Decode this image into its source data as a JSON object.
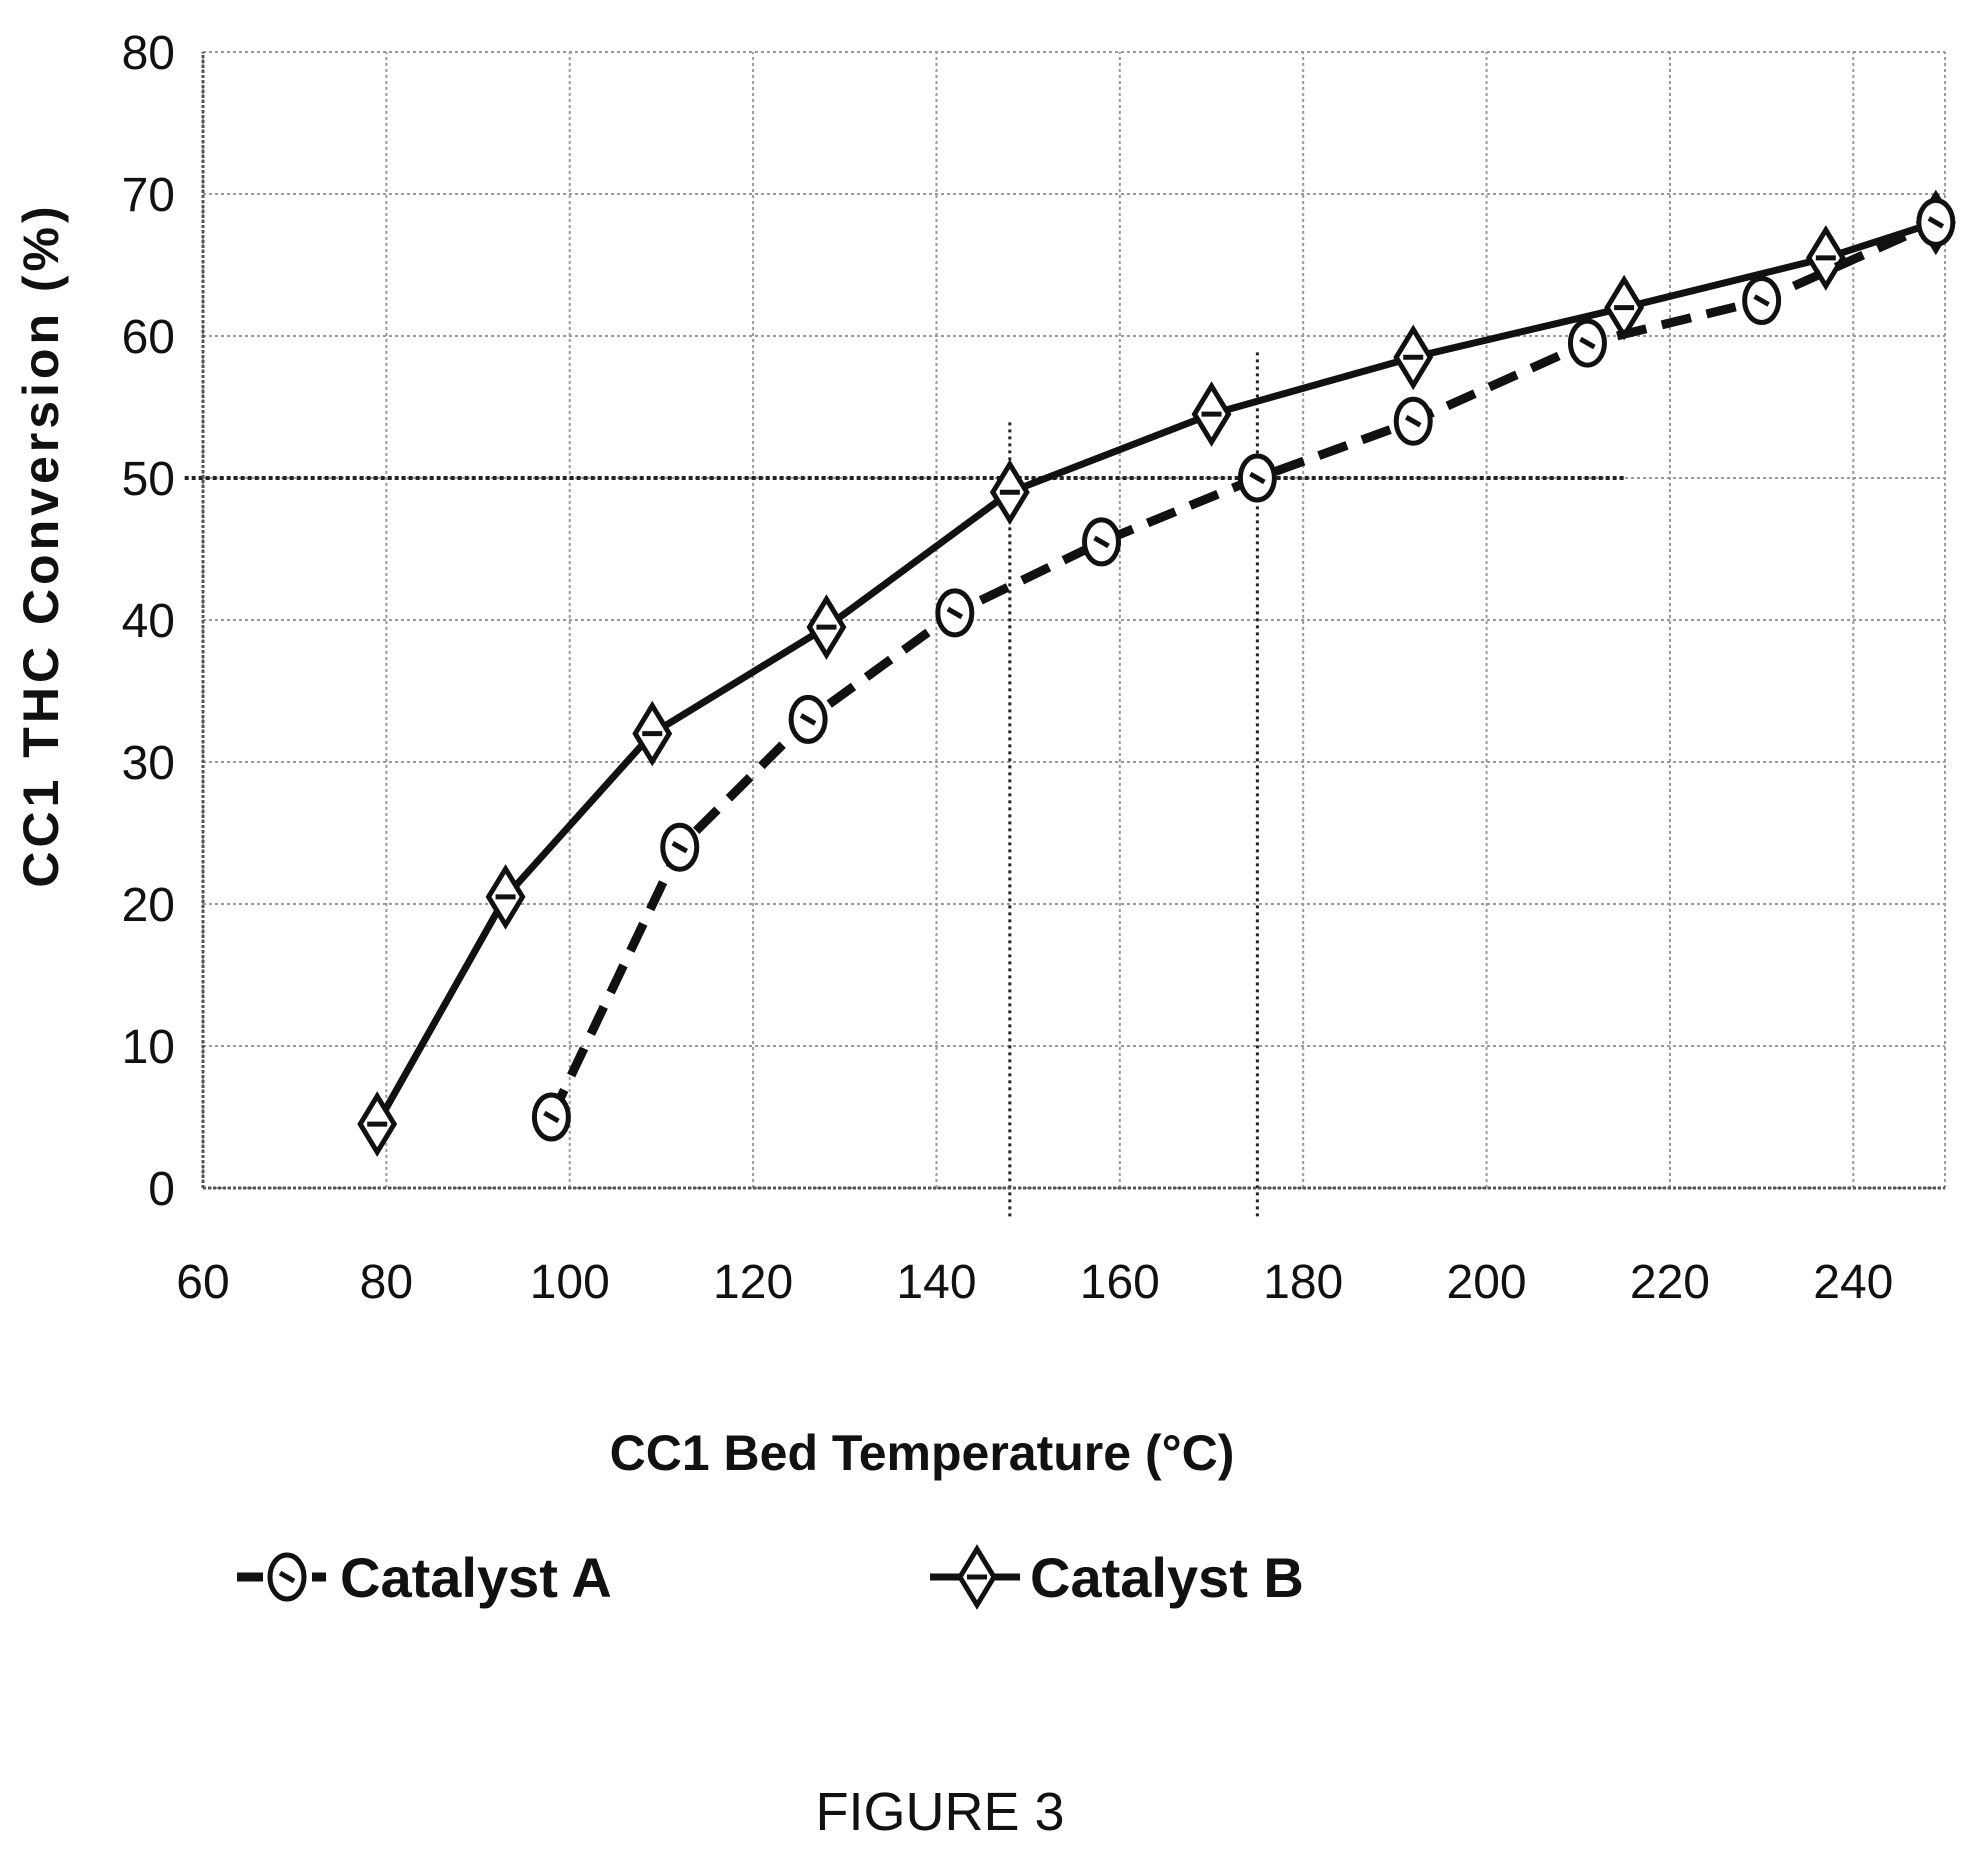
{
  "caption": "FIGURE 3",
  "chart_data": {
    "type": "line",
    "xlabel": "CC1 Bed Temperature (°C)",
    "ylabel": "CC1 THC Conversion (%)",
    "xlim": [
      60,
      250
    ],
    "ylim": [
      0,
      80
    ],
    "x_ticks": [
      60,
      80,
      100,
      120,
      140,
      160,
      180,
      200,
      220,
      240
    ],
    "y_ticks": [
      0,
      10,
      20,
      30,
      40,
      50,
      60,
      70,
      80
    ],
    "grid": true,
    "legend_position": "bottom",
    "series": [
      {
        "name": "Catalyst A",
        "line_style": "dashed",
        "marker": "circle",
        "color": "#111111",
        "points": [
          [
            98,
            5
          ],
          [
            112,
            24
          ],
          [
            126,
            33
          ],
          [
            142,
            40.5
          ],
          [
            158,
            45.5
          ],
          [
            175,
            50
          ],
          [
            192,
            54
          ],
          [
            211,
            59.5
          ],
          [
            230,
            62.5
          ],
          [
            249,
            68
          ]
        ]
      },
      {
        "name": "Catalyst B",
        "line_style": "solid",
        "marker": "diamond",
        "color": "#111111",
        "points": [
          [
            79,
            4.5
          ],
          [
            93,
            20.5
          ],
          [
            109,
            32
          ],
          [
            128,
            39.5
          ],
          [
            148,
            49
          ],
          [
            170,
            54.5
          ],
          [
            192,
            58.5
          ],
          [
            215,
            62
          ],
          [
            237,
            65.5
          ],
          [
            249,
            68
          ]
        ]
      }
    ],
    "reference_lines": [
      {
        "type": "horizontal",
        "y": 50,
        "x_range": [
          58,
          215
        ],
        "style": "dotted"
      },
      {
        "type": "vertical",
        "x": 148,
        "y_range": [
          -2,
          54
        ],
        "style": "dotted"
      },
      {
        "type": "vertical",
        "x": 175,
        "y_range": [
          -2,
          59
        ],
        "style": "dotted"
      }
    ]
  }
}
